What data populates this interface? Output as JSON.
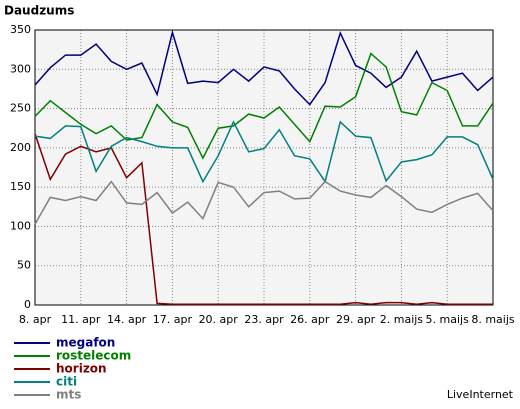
{
  "chart_data": {
    "type": "line",
    "title": "Daudzums",
    "categories": [
      "8. apr",
      null,
      null,
      "11. apr",
      null,
      null,
      "14. apr",
      null,
      null,
      "17. apr",
      null,
      null,
      "20. apr",
      null,
      null,
      "23. apr",
      null,
      null,
      "26. apr",
      null,
      null,
      "29. apr",
      null,
      null,
      "2. maijs",
      null,
      null,
      "5. maijs",
      null,
      null,
      "8. maijs"
    ],
    "series": [
      {
        "name": "megafon",
        "color": "#000080",
        "values": [
          280,
          302,
          318,
          318,
          332,
          310,
          300,
          308,
          268,
          347,
          282,
          285,
          283,
          300,
          285,
          303,
          298,
          275,
          255,
          283,
          346,
          305,
          295,
          277,
          290,
          323,
          285,
          290,
          295,
          273,
          290
        ]
      },
      {
        "name": "rostelecom",
        "color": "#008000",
        "values": [
          240,
          260,
          245,
          230,
          218,
          228,
          210,
          213,
          255,
          233,
          226,
          187,
          225,
          228,
          243,
          238,
          252,
          230,
          208,
          253,
          252,
          265,
          320,
          303,
          246,
          242,
          283,
          273,
          228,
          228,
          257
        ]
      },
      {
        "name": "horizon",
        "color": "#800000",
        "values": [
          218,
          160,
          192,
          202,
          195,
          200,
          162,
          181,
          2,
          1,
          1,
          1,
          1,
          1,
          1,
          1,
          1,
          1,
          1,
          1,
          1,
          3,
          1,
          3,
          3,
          1,
          3,
          1,
          1,
          1,
          1
        ]
      },
      {
        "name": "citi",
        "color": "#008080",
        "values": [
          215,
          212,
          228,
          227,
          170,
          202,
          213,
          208,
          202,
          200,
          200,
          157,
          190,
          233,
          195,
          199,
          223,
          190,
          186,
          157,
          233,
          215,
          213,
          158,
          182,
          185,
          191,
          214,
          214,
          204,
          160
        ]
      },
      {
        "name": "mts",
        "color": "#808080",
        "values": [
          103,
          137,
          133,
          138,
          133,
          157,
          130,
          128,
          143,
          117,
          131,
          110,
          156,
          150,
          125,
          143,
          145,
          135,
          136,
          157,
          145,
          140,
          137,
          152,
          138,
          122,
          118,
          128,
          136,
          142,
          120
        ]
      }
    ],
    "ylim": [
      0,
      350
    ],
    "yticks": [
      0,
      50,
      100,
      150,
      200,
      250,
      300,
      350
    ],
    "grid": true,
    "footer": "LiveInternet"
  }
}
